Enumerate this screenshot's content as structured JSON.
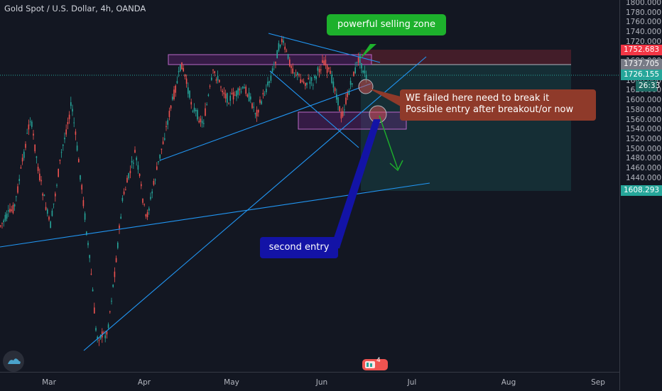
{
  "header": {
    "title": "Gold Spot / U.S. Dollar, 4h, OANDA"
  },
  "price_axis": {
    "ticks": [
      "1800.000",
      "1780.000",
      "1760.000",
      "1740.000",
      "1720.000",
      "1700.000",
      "1680.000",
      "1660.000",
      "1640.000",
      "1620.000",
      "1600.000",
      "1580.000",
      "1560.000",
      "1540.000",
      "1520.000",
      "1500.000",
      "1480.000",
      "1460.000",
      "1440.000"
    ],
    "labels": {
      "stop": {
        "text": "1752.683",
        "color": "#f23645"
      },
      "entry": {
        "text": "1737.705",
        "color": "#787b86"
      },
      "current": {
        "text": "1726.155",
        "color": "#26a69a"
      },
      "countdown": {
        "text": "26:33",
        "color": "#26a69a"
      },
      "target": {
        "text": "1608.293",
        "color": "#26a69a"
      }
    }
  },
  "time_axis": {
    "ticks": [
      "Mar",
      "Apr",
      "May",
      "Jun",
      "Jul",
      "Aug",
      "Sep"
    ]
  },
  "annotations": {
    "selling_zone": {
      "text": "powerful selling zone",
      "color": "#1db12c"
    },
    "failed_note": {
      "line1": "WE failed here need to break it",
      "line2": "Possible entry after breakout/or now",
      "color": "#8f3a2a"
    },
    "second_entry": {
      "text": "second entry",
      "color": "#1313a6"
    }
  },
  "badges": {
    "count": "4"
  },
  "colors": {
    "bg": "#131722",
    "up": "#26a69a",
    "down": "#ef5350",
    "trend": "#2962ff",
    "zone": "#9c27b0"
  }
}
